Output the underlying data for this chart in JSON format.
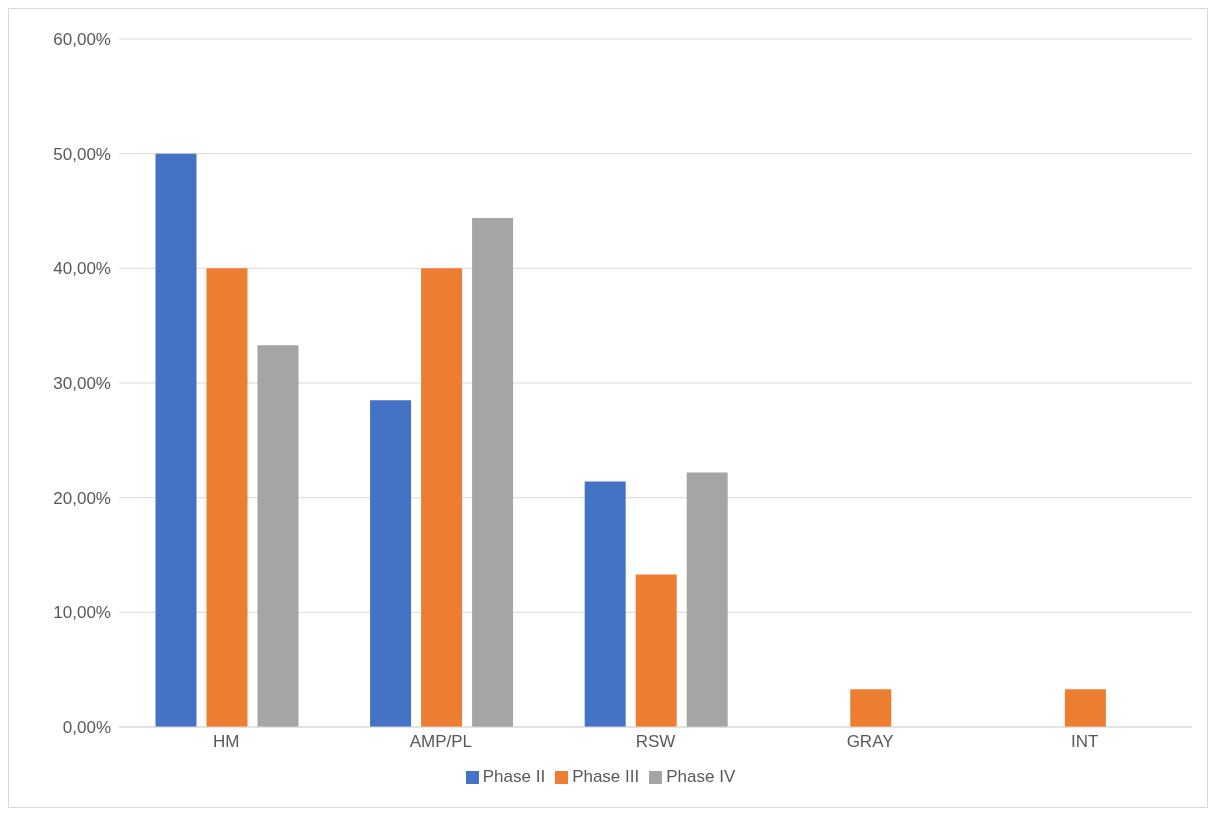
{
  "chart_data": {
    "type": "bar",
    "categories": [
      "HM",
      "AMP/PL",
      "RSW",
      "GRAY",
      "INT"
    ],
    "series": [
      {
        "name": "Phase II",
        "color": "#4472c4",
        "values": [
          50,
          28.5,
          21.4,
          0,
          0
        ]
      },
      {
        "name": "Phase III",
        "color": "#ed7d31",
        "values": [
          40,
          40,
          13.3,
          3.3,
          3.3
        ]
      },
      {
        "name": "Phase IV",
        "color": "#a5a5a5",
        "values": [
          33.3,
          44.4,
          22.2,
          0,
          0
        ]
      }
    ],
    "ylim": [
      0,
      60
    ],
    "yticks": [
      {
        "value": 0,
        "label": "0,00%"
      },
      {
        "value": 10,
        "label": "10,00%"
      },
      {
        "value": 20,
        "label": "20,00%"
      },
      {
        "value": 30,
        "label": "30,00%"
      },
      {
        "value": 40,
        "label": "40,00%"
      },
      {
        "value": 50,
        "label": "50,00%"
      },
      {
        "value": 60,
        "label": "60,00%"
      }
    ],
    "grid": "y",
    "legend": "bottom"
  }
}
